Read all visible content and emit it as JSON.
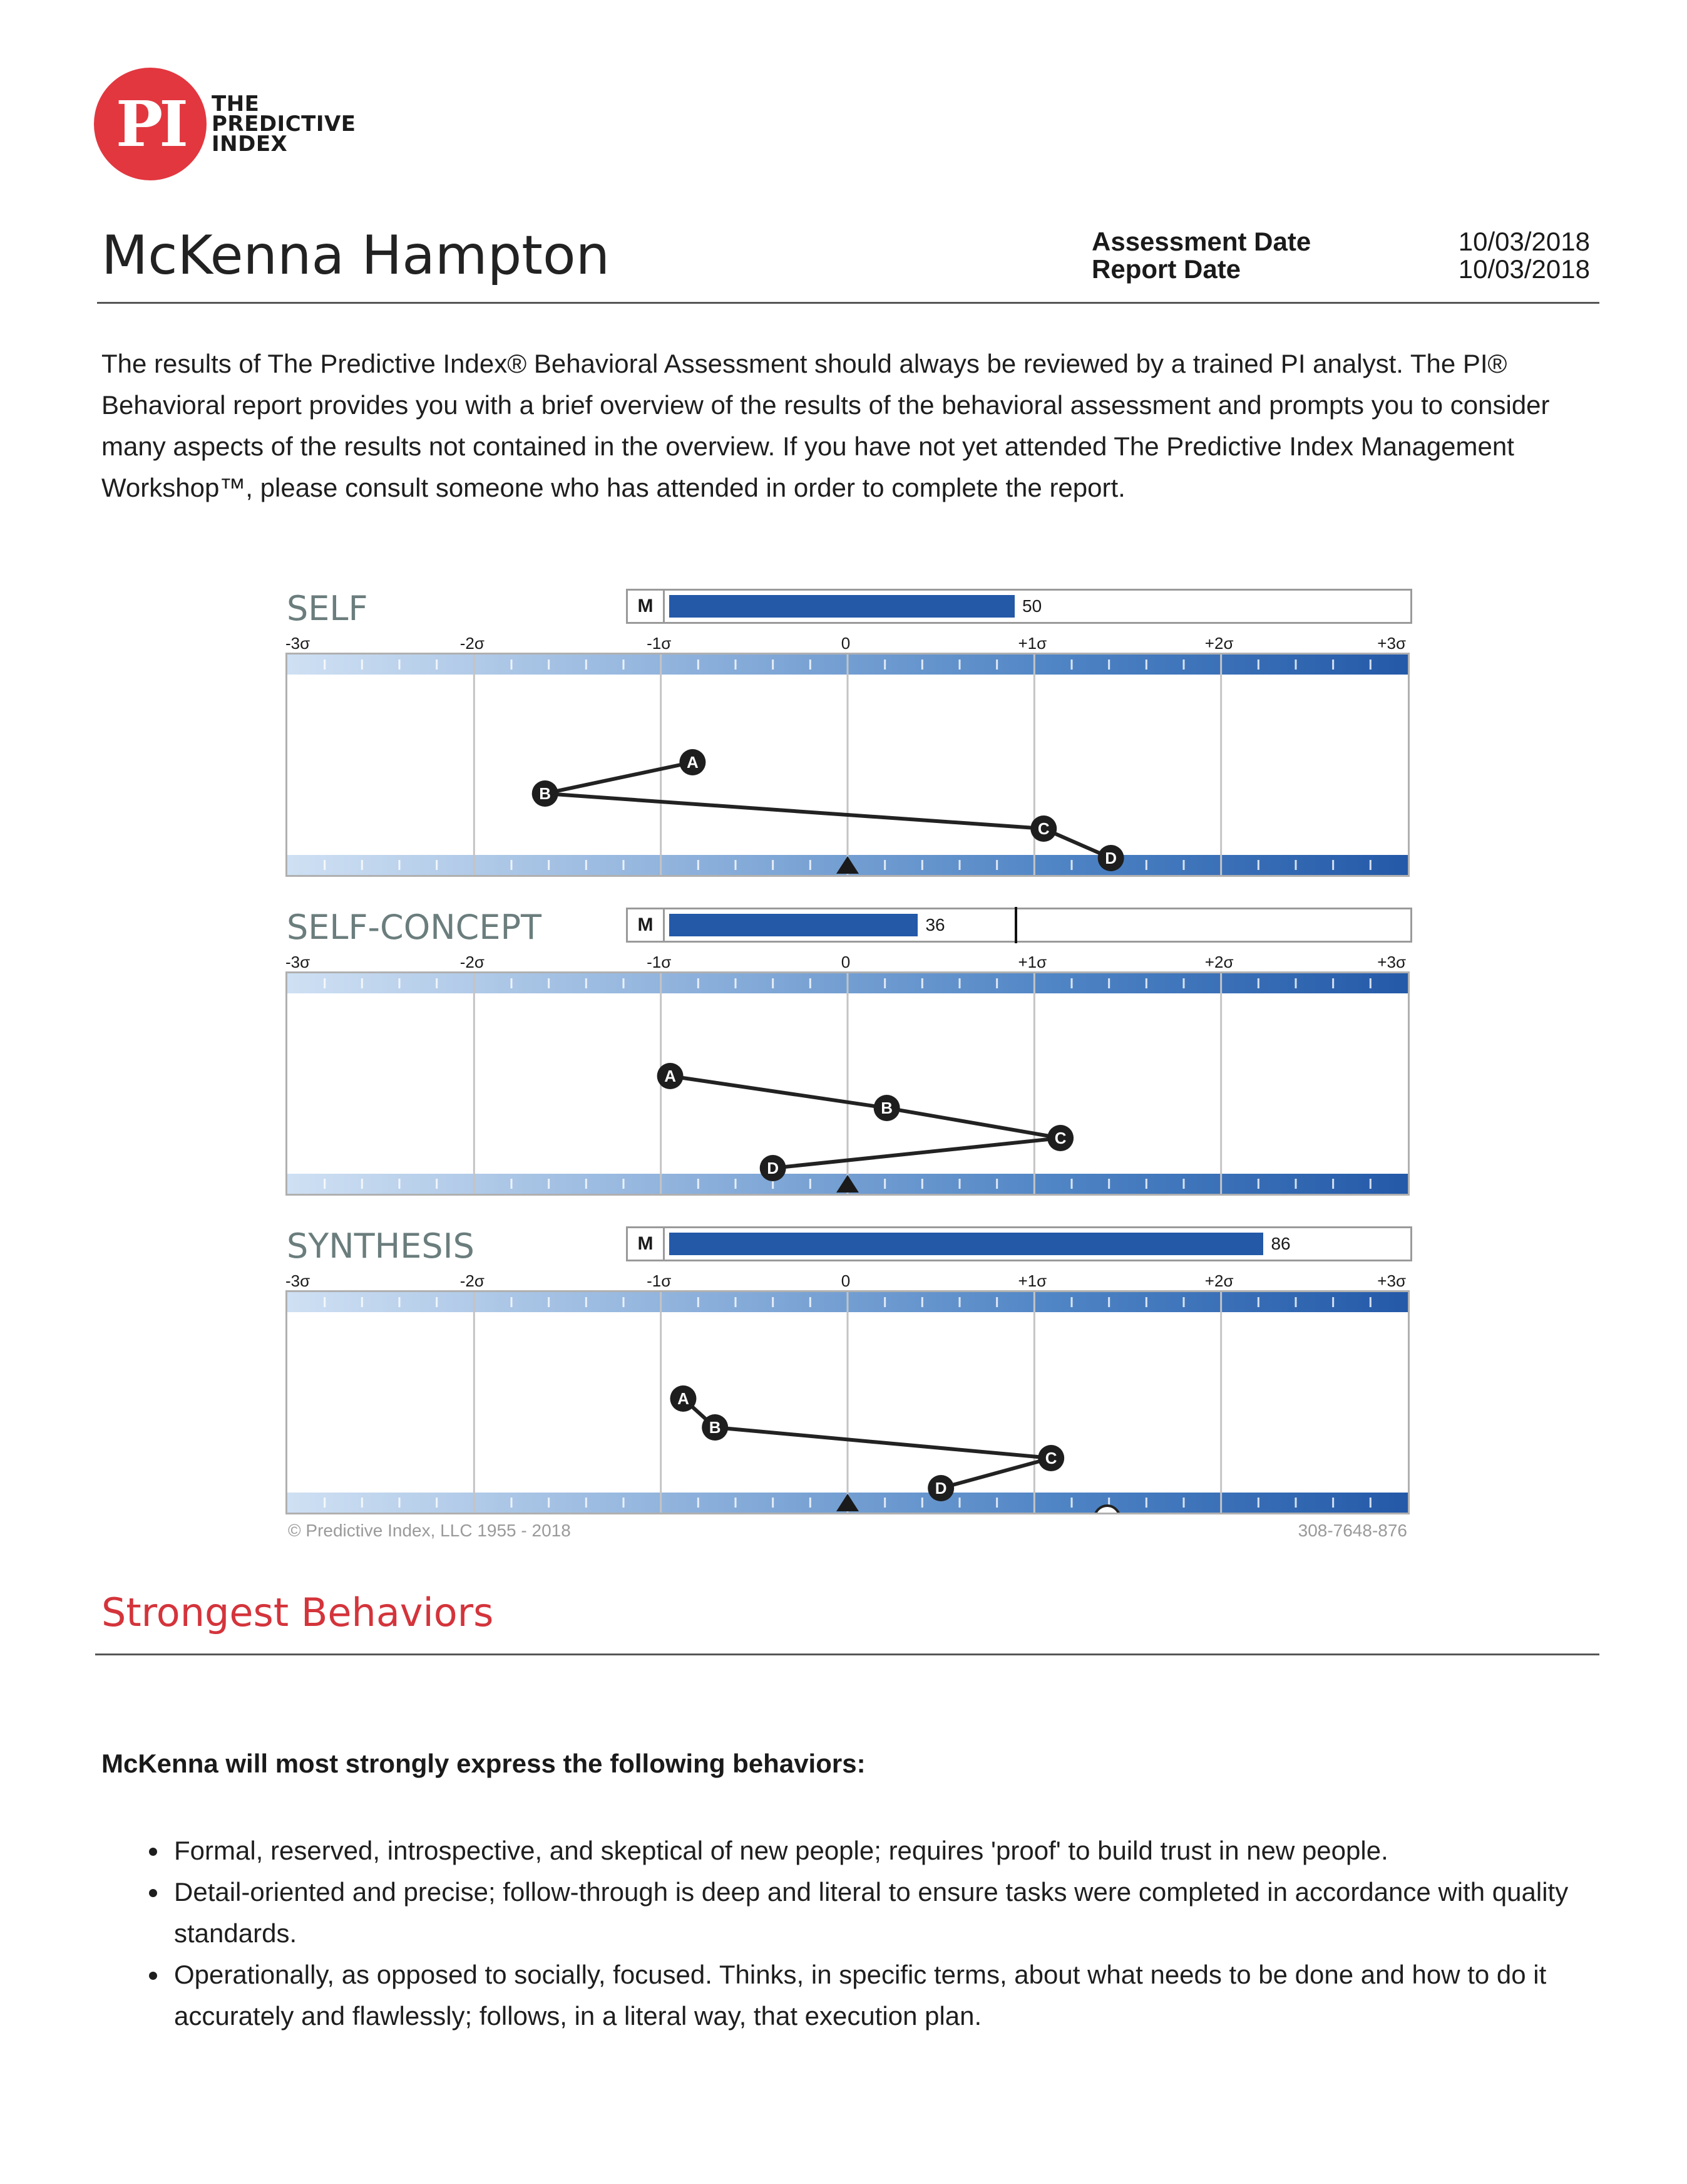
{
  "logo": {
    "monogram": "PI",
    "lines": [
      "THE",
      "PREDICTIVE",
      "INDEX"
    ]
  },
  "header": {
    "name": "McKenna Hampton",
    "assessment_label": "Assessment Date",
    "assessment_date": "10/03/2018",
    "report_label": "Report Date",
    "report_date": "10/03/2018"
  },
  "intro": "The results of The Predictive Index® Behavioral Assessment should always be reviewed by a trained PI analyst. The PI® Behavioral report provides you with a brief overview of the results of the behavioral assessment and prompts you to consider many aspects of the results not contained in the overview. If you have not yet attended The Predictive Index Management Workshop™, please consult someone who has attended in order to complete the report.",
  "ticks": [
    "-3σ",
    "-2σ",
    "-1σ",
    "0",
    "+1σ",
    "+2σ",
    "+3σ"
  ],
  "m_label": "M",
  "chart_data": [
    {
      "type": "line",
      "title": "SELF",
      "m_value": 50,
      "m_max": 100,
      "xlim": [
        -3,
        3
      ],
      "points": [
        {
          "label": "A",
          "x": -0.83
        },
        {
          "label": "B",
          "x": -1.62
        },
        {
          "label": "C",
          "x": 1.05
        },
        {
          "label": "D",
          "x": 1.41
        }
      ]
    },
    {
      "type": "line",
      "title": "SELF-CONCEPT",
      "m_value": 36,
      "m_max": 100,
      "m_marker": 50,
      "xlim": [
        -3,
        3
      ],
      "points": [
        {
          "label": "A",
          "x": -0.95
        },
        {
          "label": "B",
          "x": 0.21
        },
        {
          "label": "C",
          "x": 1.14
        },
        {
          "label": "D",
          "x": -0.4
        }
      ]
    },
    {
      "type": "line",
      "title": "SYNTHESIS",
      "m_value": 86,
      "m_max": 100,
      "xlim": [
        -3,
        3
      ],
      "points": [
        {
          "label": "A",
          "x": -0.88
        },
        {
          "label": "B",
          "x": -0.71
        },
        {
          "label": "C",
          "x": 1.09
        },
        {
          "label": "D",
          "x": 0.5
        }
      ],
      "extra_point": {
        "label": "E",
        "x": 1.39
      }
    }
  ],
  "footer": {
    "copyright": "© Predictive Index, LLC 1955 - 2018",
    "code": "308-7648-876"
  },
  "section": {
    "title": "Strongest Behaviors",
    "lead": "McKenna will most strongly express the following behaviors:",
    "bullets": [
      "Formal, reserved, introspective, and skeptical of new people; requires 'proof' to build trust in new people.",
      "Detail-oriented and precise; follow-through is deep and literal to ensure tasks were completed in accordance with quality standards.",
      "Operationally, as opposed to socially, focused. Thinks, in specific terms, about what needs to be done and how to do it accurately and flawlessly; follows, in a literal way, that execution plan."
    ]
  }
}
